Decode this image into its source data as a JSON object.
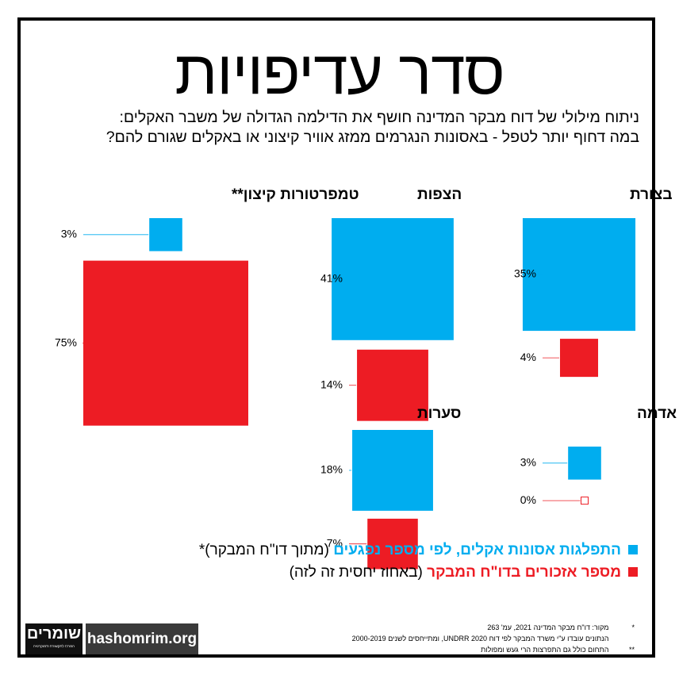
{
  "header": {
    "title": "סדר עדיפויות",
    "subtitle_line1": "ניתוח מילולי של דוח מבקר המדינה חושף את הדילמה הגדולה של משבר האקלים:",
    "subtitle_line2": "במה דחוף יותר לטפל - באסונות הנגרמים ממזג אוויר קיצוני או באקלים שגורם להם?"
  },
  "colors": {
    "blue": "#00adef",
    "red": "#ed1c24",
    "border": "#000000"
  },
  "chart_data": {
    "type": "bar",
    "unit": "%",
    "series": [
      {
        "name": "התפלגות אסונות אקלים, לפי מספר נפגעים",
        "color": "#00adef"
      },
      {
        "name": "מספר אזכורים בדו\"ח המבקר",
        "color": "#ed1c24"
      }
    ],
    "categories": [
      {
        "name": "טמפרטורות קיצון**",
        "disaster_share": 3,
        "report_mentions": 75
      },
      {
        "name": "הצפות",
        "disaster_share": 41,
        "report_mentions": 14
      },
      {
        "name": "בצורת",
        "disaster_share": 35,
        "report_mentions": 4
      },
      {
        "name": "סערות",
        "disaster_share": 18,
        "report_mentions": 7
      },
      {
        "name": "רעידות אדמה",
        "disaster_share": 3,
        "report_mentions": 0
      }
    ]
  },
  "legend": {
    "blue_strong": "התפלגות אסונות אקלים, לפי מספר נפגעים",
    "blue_rest": "(מתוך דו\"ח המבקר)*",
    "red_strong": "מספר אזכורים בדו\"ח המבקר",
    "red_rest": "(באחוז יחסית זה לזה)"
  },
  "footnotes": [
    {
      "mark": "*",
      "text": "מקור: דו\"ח מבקר המדינה 2021, עמ' 263"
    },
    {
      "mark": "",
      "text": "הנתונים עובדו ע\"י משרד המבקר לפי דוח UNDRR 2020, ומתייחסים לשנים 2000-2019"
    },
    {
      "mark": "**",
      "text": "התחום כולל גם התפרצות הרי געש ומפולות"
    }
  ],
  "branding": {
    "logo_word": "שומרים",
    "logo_sub": "המרכז לתקשורת ודמוקרטיה",
    "site": "hashomrim.org"
  }
}
